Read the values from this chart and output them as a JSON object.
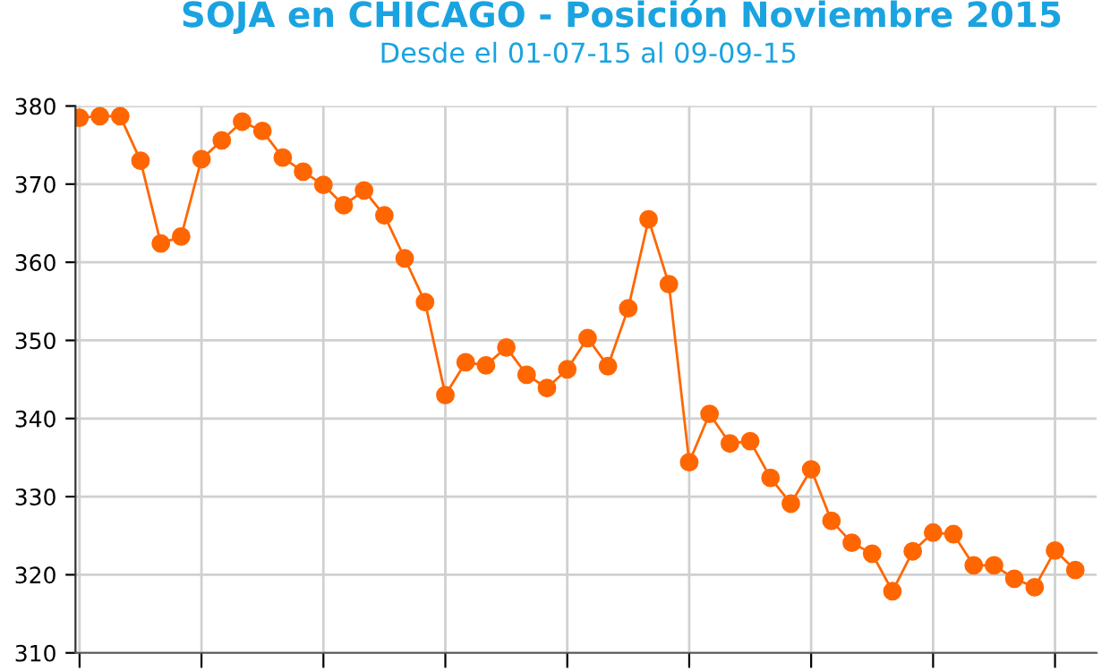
{
  "chart_data": {
    "type": "line",
    "title": "SOJA en CHICAGO - Posición Noviembre 2015",
    "subtitle": "Desde el 01-07-15 al 09-09-15",
    "categories": [
      null,
      null,
      null,
      null,
      null,
      null,
      null,
      null,
      null,
      null,
      null,
      null,
      null,
      null,
      null,
      null,
      null,
      null,
      null,
      null,
      null,
      null,
      null,
      null,
      null,
      null,
      null,
      null,
      null,
      null,
      null,
      null,
      null,
      null,
      null,
      null,
      null,
      null,
      null,
      null,
      null,
      null,
      null,
      null,
      null,
      null,
      null,
      null,
      null,
      null
    ],
    "series": [
      {
        "color": "#ff6600",
        "values": [
          378.5,
          378.7,
          378.7,
          373,
          362.4,
          363.3,
          373.2,
          375.6,
          378,
          376.8,
          373.4,
          371.6,
          369.9,
          367.3,
          369.2,
          366,
          360.5,
          354.9,
          343,
          347.2,
          346.8,
          349.1,
          345.6,
          343.9,
          346.3,
          350.3,
          346.7,
          354.1,
          365.5,
          357.2,
          334.4,
          340.6,
          336.8,
          337.1,
          332.4,
          329.1,
          333.5,
          326.9,
          324.1,
          322.7,
          317.9,
          323,
          325.4,
          325.2,
          321.2,
          321.2,
          319.5,
          318.4,
          323.1,
          320.6
        ]
      }
    ],
    "ylim": [
      310,
      380
    ],
    "yticks": [
      310,
      320,
      330,
      340,
      350,
      360,
      370,
      380
    ],
    "grid": true,
    "marker": "circle",
    "line_style": "solid",
    "legend": false
  }
}
